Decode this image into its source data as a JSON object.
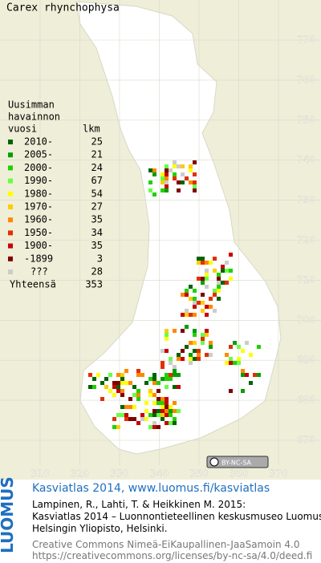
{
  "title": "Carex rhynchophysa",
  "legend": {
    "heading": [
      "Uusimman",
      "havainnon",
      "vuosi"
    ],
    "count_heading": "lkm",
    "rows": [
      {
        "label": "2010-",
        "count": 25,
        "color": "#006400"
      },
      {
        "label": "2005-",
        "count": 21,
        "color": "#00a000"
      },
      {
        "label": "2000-",
        "count": 24,
        "color": "#22d000"
      },
      {
        "label": "1990-",
        "count": 67,
        "color": "#66ff44"
      },
      {
        "label": "1980-",
        "count": 54,
        "color": "#ffff00"
      },
      {
        "label": "1970-",
        "count": 27,
        "color": "#ffcc00"
      },
      {
        "label": "1960-",
        "count": 35,
        "color": "#ff8800"
      },
      {
        "label": "1950-",
        "count": 34,
        "color": "#e03000"
      },
      {
        "label": "1900-",
        "count": 35,
        "color": "#c80000"
      },
      {
        "label": "-1899",
        "count": 3,
        "color": "#800000"
      },
      {
        "label": "???",
        "count": 28,
        "color": "#cccccc"
      }
    ],
    "total_label": "Yhteensä",
    "total": 353
  },
  "xticks": [
    310,
    320,
    330,
    340,
    350,
    360,
    370
  ],
  "yticks": [
    670,
    680,
    690,
    700,
    710,
    720,
    730,
    740,
    750,
    760,
    770
  ],
  "license_badge": "BY-NC-SA",
  "brand": "LUOMUS",
  "footer": {
    "link": "Kasviatlas 2014, www.luomus.fi/kasviatlas",
    "citation": [
      "Lampinen, R., Lahti, T. & Heikkinen M. 2015:",
      "Kasviatlas 2014 – Luonnontieteellinen keskusmuseo Luomus,",
      "Helsingin Yliopisto, Helsinki."
    ],
    "license": [
      "Creative Commons Nimeä-EiKaupallinen-JaaSamoin 4.0",
      "https://creativecommons.org/licenses/by-nc-sa/4.0/deed.fi"
    ]
  }
}
